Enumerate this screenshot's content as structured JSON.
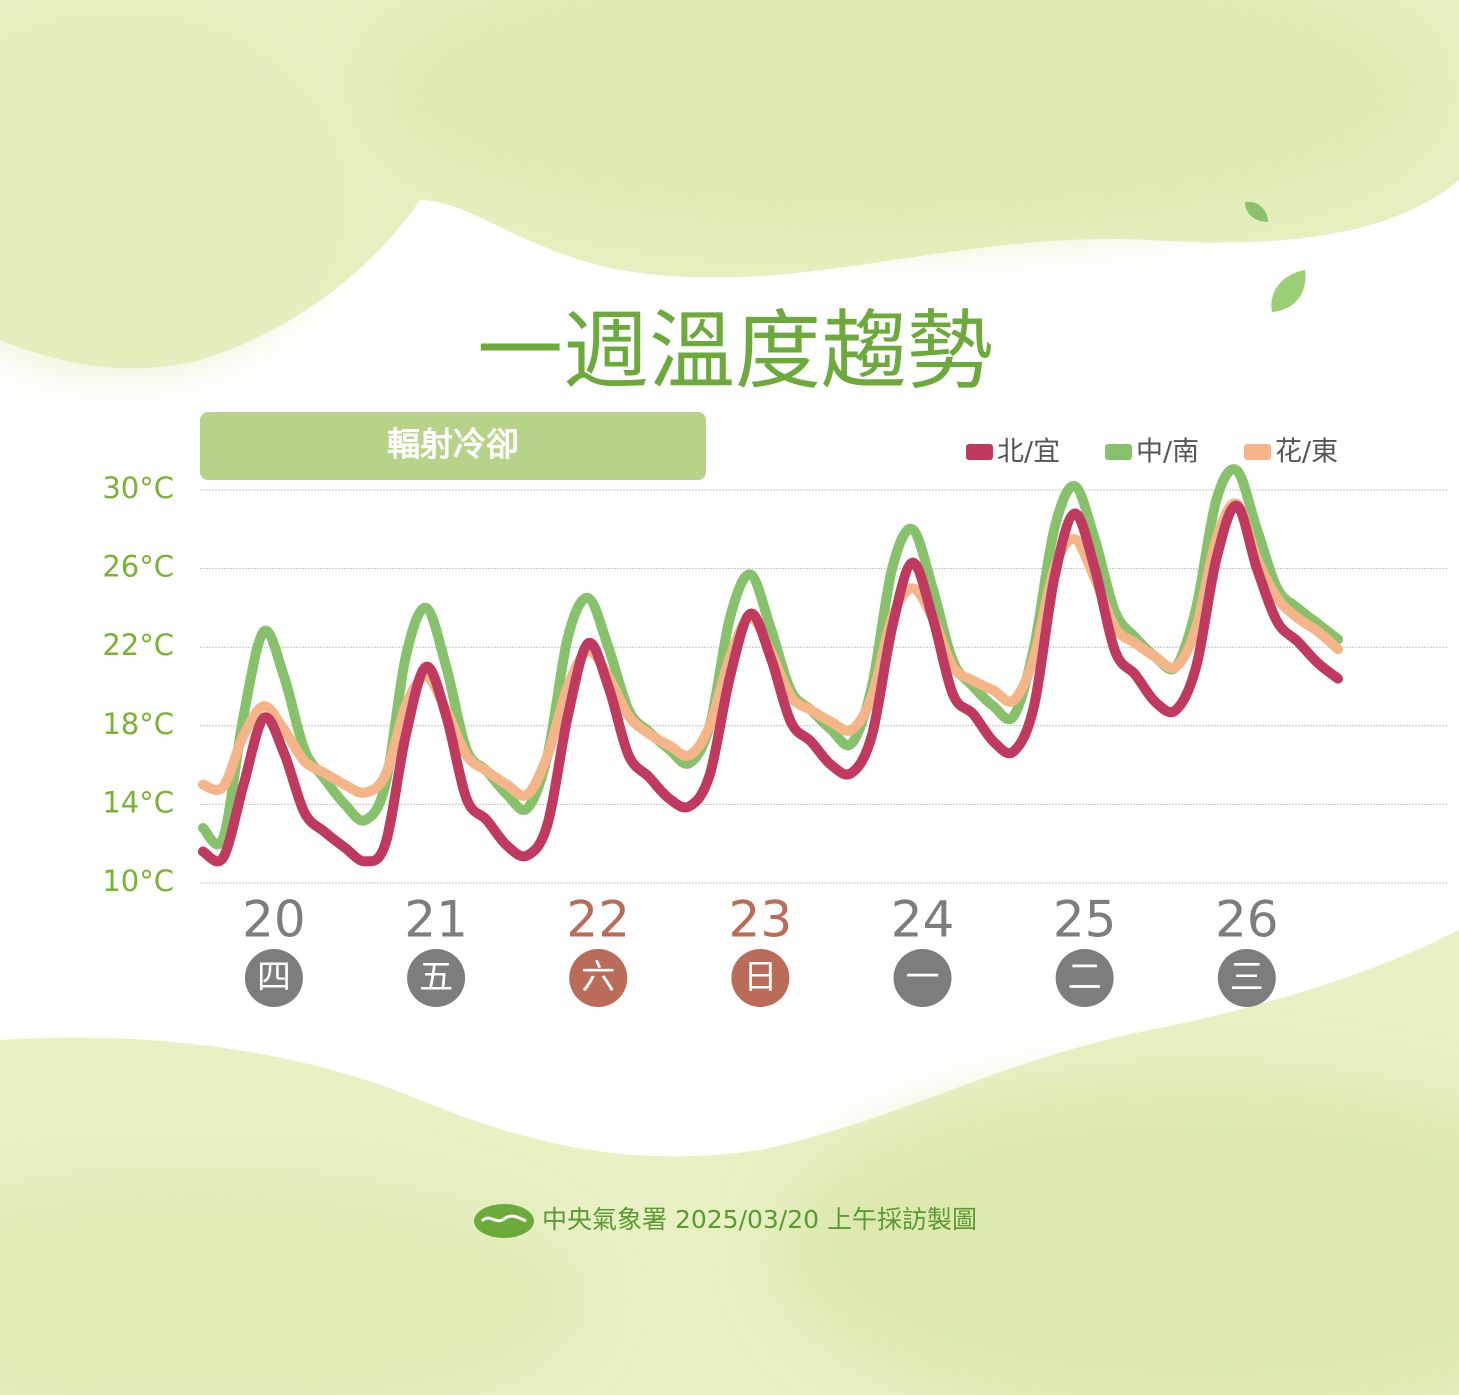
{
  "chart_data": {
    "type": "line",
    "title": "一週溫度趨勢",
    "tag": "輻射冷卻",
    "footer": "中央氣象署 2025/03/20 上午採訪製圖",
    "days": [
      "20",
      "21",
      "22",
      "23",
      "24",
      "25",
      "26"
    ],
    "weekdays": [
      "四",
      "五",
      "六",
      "日",
      "一",
      "二",
      "三"
    ],
    "weekend": [
      false,
      false,
      true,
      true,
      false,
      false,
      false
    ],
    "weekday_color": "#7d7d7d",
    "weekend_color": "#bb6c58",
    "ylim": [
      10,
      30
    ],
    "yticks": [
      {
        "value": 10,
        "label": "10°C"
      },
      {
        "value": 14,
        "label": "14°C"
      },
      {
        "value": 18,
        "label": "18°C"
      },
      {
        "value": 22,
        "label": "22°C"
      },
      {
        "value": 26,
        "label": "26°C"
      },
      {
        "value": 30,
        "label": "30°C"
      }
    ],
    "grid": true,
    "legend": "top-right",
    "series": [
      {
        "name": "中/南",
        "color": "#88c16c",
        "values": [
          12.8,
          12.3,
          18.5,
          22.8,
          20.5,
          16.8,
          15.3,
          14.0,
          13.2,
          15.0,
          21.5,
          24.0,
          21.0,
          16.8,
          15.7,
          14.5,
          13.8,
          16.5,
          22.5,
          24.5,
          22.0,
          18.8,
          17.7,
          16.8,
          16.1,
          18.0,
          23.5,
          25.7,
          23.0,
          19.8,
          18.8,
          17.8,
          17.1,
          20.0,
          26.0,
          28.0,
          25.0,
          21.3,
          20.0,
          19.0,
          18.5,
          22.0,
          28.0,
          30.2,
          27.5,
          23.8,
          22.5,
          21.5,
          21.0,
          24.0,
          29.5,
          31.0,
          28.0,
          25.0,
          24.0,
          23.2,
          22.4
        ]
      },
      {
        "name": "花/東",
        "color": "#f5b589",
        "values": [
          15.0,
          14.9,
          17.5,
          19.0,
          17.8,
          16.2,
          15.6,
          15.0,
          14.6,
          15.5,
          19.0,
          20.5,
          18.8,
          16.5,
          15.7,
          15.0,
          14.5,
          16.5,
          20.0,
          21.8,
          20.5,
          18.5,
          17.6,
          17.0,
          16.5,
          18.0,
          21.5,
          23.5,
          21.8,
          19.5,
          18.8,
          18.2,
          17.8,
          19.5,
          23.5,
          25.0,
          23.5,
          21.0,
          20.3,
          19.8,
          19.3,
          21.5,
          26.0,
          27.5,
          25.5,
          23.0,
          22.2,
          21.5,
          21.0,
          23.0,
          27.5,
          29.3,
          26.5,
          24.5,
          23.5,
          22.8,
          21.9
        ]
      },
      {
        "name": "北/宜",
        "color": "#c0395e",
        "values": [
          11.6,
          11.3,
          15.0,
          18.4,
          16.6,
          13.6,
          12.6,
          11.8,
          11.1,
          12.0,
          17.5,
          21.0,
          18.5,
          14.3,
          13.2,
          11.9,
          11.4,
          13.0,
          18.5,
          22.2,
          20.0,
          16.5,
          15.4,
          14.3,
          13.9,
          15.5,
          20.5,
          23.7,
          21.5,
          18.2,
          17.2,
          16.0,
          15.6,
          17.5,
          23.0,
          26.3,
          23.5,
          19.6,
          18.6,
          17.2,
          16.7,
          19.0,
          25.5,
          28.8,
          26.0,
          21.8,
          20.6,
          19.2,
          18.8,
          21.0,
          26.5,
          29.2,
          26.0,
          23.3,
          22.3,
          21.2,
          20.4
        ]
      }
    ]
  }
}
